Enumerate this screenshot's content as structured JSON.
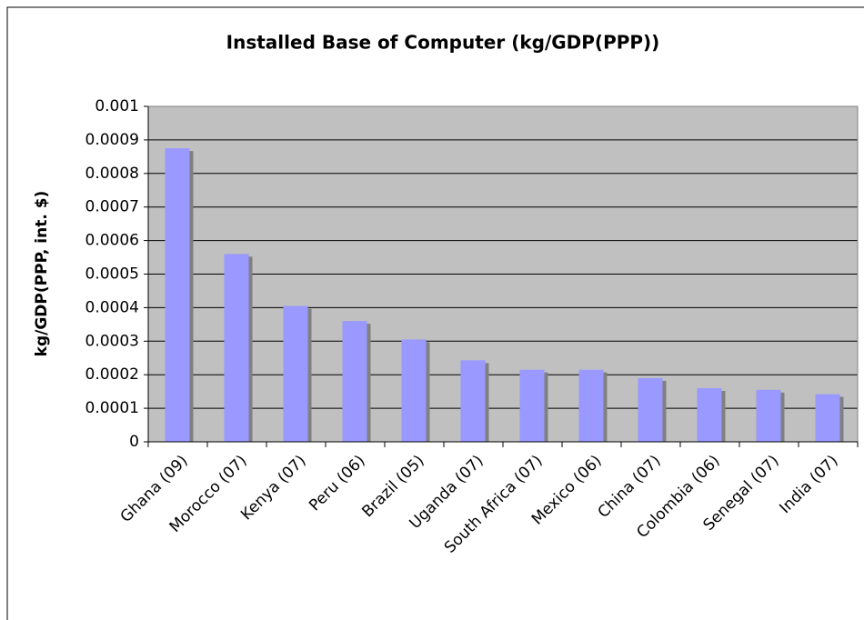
{
  "chart_data": {
    "type": "bar",
    "title": "Installed Base of Computer (kg/GDP(PPP))",
    "y_label": "kg/GDP(PPP, int. $)",
    "categories": [
      "Ghana (09)",
      "Morocco (07)",
      "Kenya (07)",
      "Peru (06)",
      "Brazil (05)",
      "Uganda (07)",
      "South Africa (07)",
      "Mexico (06)",
      "China (07)",
      "Colombia (06)",
      "Senegal (07)",
      "India (07)"
    ],
    "values": [
      0.000875,
      0.00056,
      0.000405,
      0.00036,
      0.000305,
      0.000243,
      0.000215,
      0.000215,
      0.00019,
      0.00016,
      0.000155,
      0.000142
    ],
    "color": "#9999ff",
    "ylim": [
      0,
      0.001
    ],
    "yticks": [
      0,
      0.0001,
      0.0002,
      0.0003,
      0.0004,
      0.0005,
      0.0006,
      0.0007,
      0.0008,
      0.0009,
      0.001
    ],
    "grid": true
  }
}
